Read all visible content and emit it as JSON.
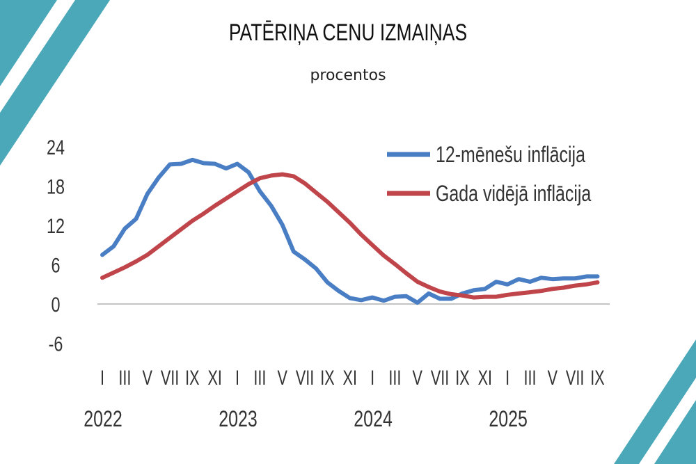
{
  "title": "PATĒRIŅA CENU IZMAIŅAS",
  "subtitle": "procentos",
  "accent_color": "#4aa8b8",
  "chart_data": {
    "type": "line",
    "ylim": [
      -6,
      24
    ],
    "yticks": [
      24,
      18,
      12,
      6,
      0,
      -6
    ],
    "month_labels": [
      "I",
      "III",
      "V",
      "VII",
      "IX",
      "XI",
      "I",
      "III",
      "V",
      "VII",
      "IX",
      "XI",
      "I",
      "III",
      "V",
      "VII",
      "IX",
      "XI",
      "I",
      "III",
      "V",
      "VII",
      "IX"
    ],
    "year_labels": [
      "2022",
      "2023",
      "2024",
      "2025"
    ],
    "legend_position": "top-right",
    "x": [
      "2022-01",
      "2022-02",
      "2022-03",
      "2022-04",
      "2022-05",
      "2022-06",
      "2022-07",
      "2022-08",
      "2022-09",
      "2022-10",
      "2022-11",
      "2022-12",
      "2023-01",
      "2023-02",
      "2023-03",
      "2023-04",
      "2023-05",
      "2023-06",
      "2023-07",
      "2023-08",
      "2023-09",
      "2023-10",
      "2023-11",
      "2023-12",
      "2024-01",
      "2024-02",
      "2024-03",
      "2024-04",
      "2024-05",
      "2024-06",
      "2024-07",
      "2024-08",
      "2024-09",
      "2024-10",
      "2024-11",
      "2024-12",
      "2025-01",
      "2025-02",
      "2025-03",
      "2025-04",
      "2025-05",
      "2025-06",
      "2025-07",
      "2025-08",
      "2025-09"
    ],
    "series": [
      {
        "name": "12-mēnešu inflācija",
        "color": "#4a7ec4",
        "values": [
          7.5,
          8.8,
          11.5,
          13.0,
          16.8,
          19.3,
          21.3,
          21.4,
          22.0,
          21.5,
          21.4,
          20.7,
          21.4,
          20.1,
          17.2,
          15.0,
          12.1,
          8.0,
          6.8,
          5.4,
          3.3,
          2.0,
          0.9,
          0.6,
          1.0,
          0.5,
          1.1,
          1.2,
          0.2,
          1.6,
          0.8,
          0.8,
          1.6,
          2.1,
          2.3,
          3.4,
          3.0,
          3.8,
          3.4,
          4.0,
          3.8,
          3.9,
          3.9,
          4.2,
          4.2
        ]
      },
      {
        "name": "Gada vidējā inflācija",
        "color": "#c0454a",
        "values": [
          4.0,
          4.8,
          5.6,
          6.5,
          7.5,
          8.8,
          10.1,
          11.4,
          12.7,
          13.8,
          15.0,
          16.1,
          17.2,
          18.3,
          19.2,
          19.6,
          19.8,
          19.5,
          18.4,
          17.0,
          15.6,
          14.0,
          12.4,
          10.6,
          9.0,
          7.4,
          6.1,
          4.7,
          3.4,
          2.6,
          1.9,
          1.5,
          1.3,
          1.0,
          1.1,
          1.1,
          1.4,
          1.6,
          1.8,
          2.0,
          2.3,
          2.5,
          2.8,
          3.0,
          3.3
        ]
      }
    ]
  }
}
